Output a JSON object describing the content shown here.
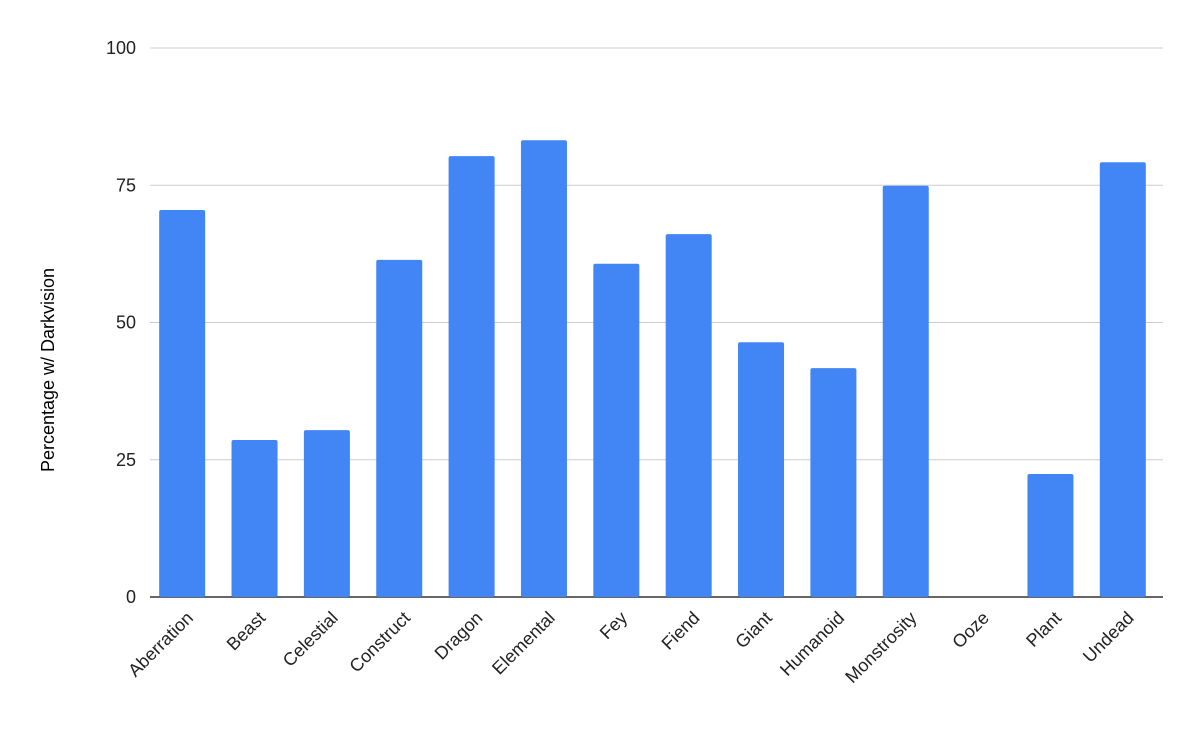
{
  "chart_data": {
    "type": "bar",
    "title": "",
    "xlabel": "",
    "ylabel": "Percentage w/ Darkvision",
    "ylim": [
      0,
      100
    ],
    "yticks": [
      "0",
      "25",
      "50",
      "75",
      "100"
    ],
    "grid": true,
    "bar_color": "#4285f4",
    "categories": [
      "Aberration",
      "Beast",
      "Celestial",
      "Construct",
      "Dragon",
      "Elemental",
      "Fey",
      "Fiend",
      "Giant",
      "Humanoid",
      "Monstrosity",
      "Ooze",
      "Plant",
      "Undead"
    ],
    "values": [
      70.5,
      28.6,
      30.4,
      61.4,
      80.3,
      83.2,
      60.7,
      66.1,
      46.4,
      41.7,
      74.9,
      0,
      22.4,
      79.2
    ]
  }
}
